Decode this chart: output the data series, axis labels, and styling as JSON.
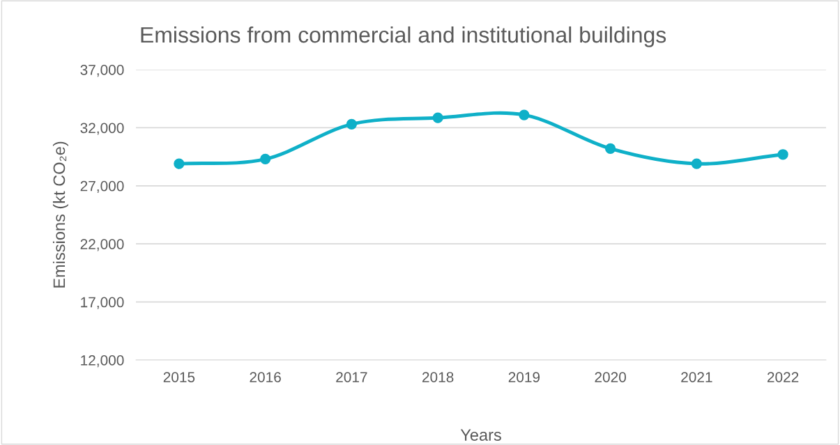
{
  "chart_data": {
    "type": "line",
    "title": "Emissions from commercial and institutional buildings",
    "xlabel": "Years",
    "ylabel": "Emissions (kt CO₂e)",
    "categories": [
      "2015",
      "2016",
      "2017",
      "2018",
      "2019",
      "2020",
      "2021",
      "2022"
    ],
    "series": [
      {
        "color": "#0fb0c8",
        "values": [
          28900,
          29300,
          32300,
          32850,
          33100,
          30200,
          28900,
          29700
        ]
      }
    ],
    "ylim": [
      12000,
      37000
    ],
    "yticks": [
      {
        "value": 12000,
        "label": "12,000"
      },
      {
        "value": 17000,
        "label": "17,000"
      },
      {
        "value": 22000,
        "label": "22,000"
      },
      {
        "value": 27000,
        "label": "27,000"
      },
      {
        "value": 32000,
        "label": "32,000"
      },
      {
        "value": 37000,
        "label": "37,000"
      }
    ],
    "grid": "y",
    "marker": "circle",
    "line_style": "solid"
  }
}
